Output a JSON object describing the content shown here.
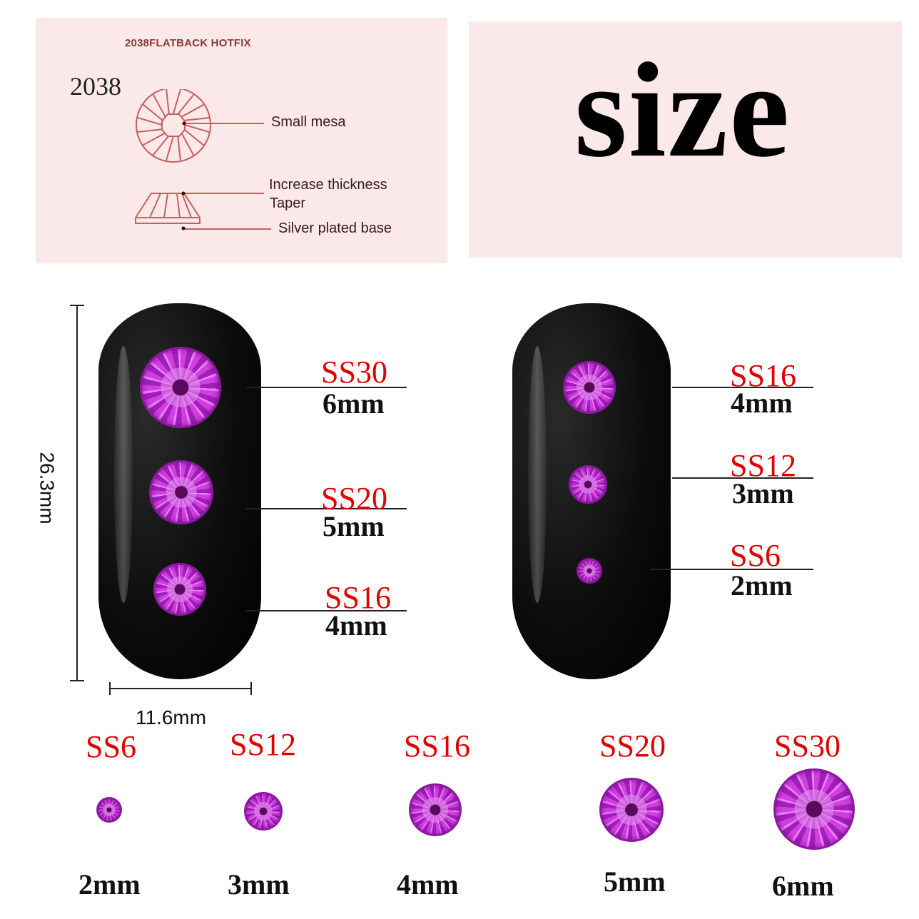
{
  "diagram": {
    "title": "2038FLATBACK HOTFIX",
    "model": "2038",
    "labels": [
      "Small mesa",
      "Increase thickness",
      "Taper",
      "Silver plated base"
    ]
  },
  "heading": "size",
  "dimensions": {
    "height": "26.3mm",
    "width": "11.6mm"
  },
  "nail_left": [
    {
      "ss": "SS30",
      "mm": "6mm"
    },
    {
      "ss": "SS20",
      "mm": "5mm"
    },
    {
      "ss": "SS16",
      "mm": "4mm"
    }
  ],
  "nail_right": [
    {
      "ss": "SS16",
      "mm": "4mm"
    },
    {
      "ss": "SS12",
      "mm": "3mm"
    },
    {
      "ss": "SS6",
      "mm": "2mm"
    }
  ],
  "bottom_row": [
    {
      "ss": "SS6",
      "mm": "2mm"
    },
    {
      "ss": "SS12",
      "mm": "3mm"
    },
    {
      "ss": "SS16",
      "mm": "4mm"
    },
    {
      "ss": "SS20",
      "mm": "5mm"
    },
    {
      "ss": "SS30",
      "mm": "6mm"
    }
  ],
  "colors": {
    "label_red": "#e00000",
    "gem_purple": "#c030d8",
    "panel_pink": "#fbe8e8",
    "diagram_line": "#c86060"
  }
}
